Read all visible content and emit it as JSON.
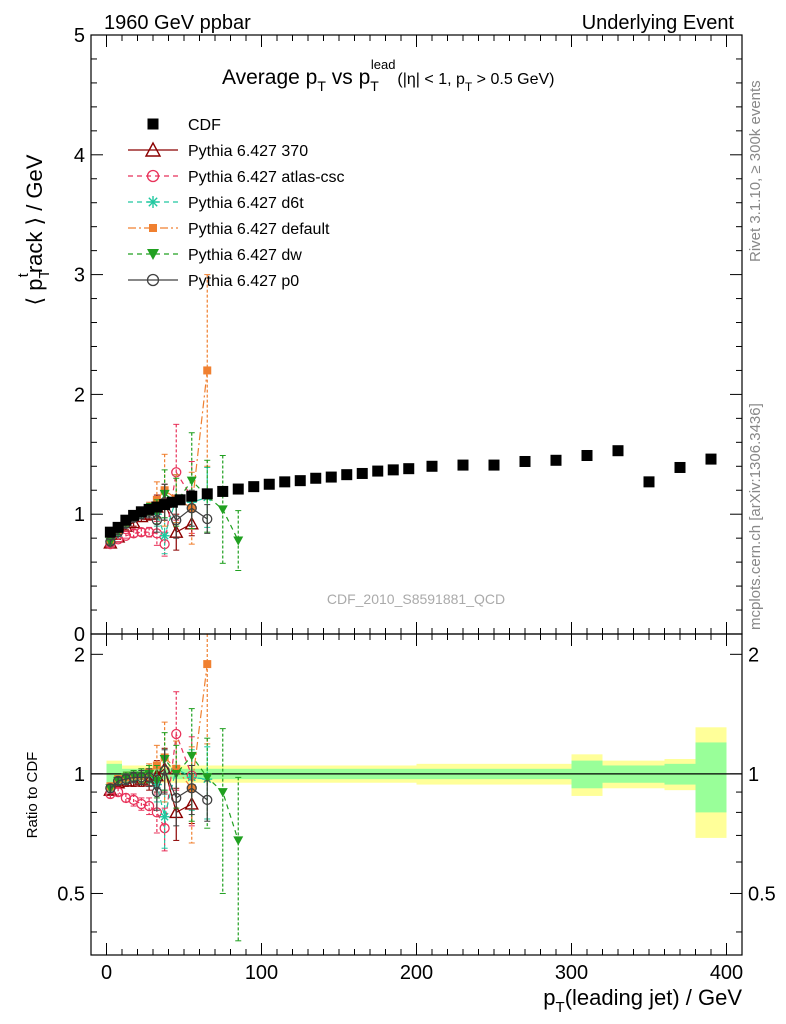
{
  "header": {
    "left": "1960 GeV ppbar",
    "right": "Underlying Event"
  },
  "title": {
    "main": "Average p",
    "sub": "T",
    "vs": " vs p",
    "lead_sub": "T",
    "lead_sup": "lead",
    "cuts": "(|η| < 1, p",
    "cuts_sub": "T",
    "cuts_end": " > 0.5 GeV)"
  },
  "ylabel": {
    "pre": "⟨ p",
    "sub": "T",
    "sup": "t",
    "post": "rack ⟩ / GeV"
  },
  "ratio_ylabel": "Ratio to CDF",
  "xlabel": {
    "pre": "p",
    "sub": "T",
    "post": "(leading jet) / GeV"
  },
  "analysis_id": "CDF_2010_S8591881_QCD",
  "side_label_top": "Rivet 3.1.10, ≥ 300k events",
  "side_label_bottom": "mcplots.cern.ch [arXiv:1306.3436]",
  "legend": [
    {
      "label": "CDF",
      "color": "#000000",
      "marker": "square",
      "dash": "none"
    },
    {
      "label": "Pythia 6.427 370",
      "color": "#8b0000",
      "marker": "triangle-open",
      "dash": "solid"
    },
    {
      "label": "Pythia 6.427 atlas-csc",
      "color": "#e8325a",
      "marker": "circle-open",
      "dash": "dashed"
    },
    {
      "label": "Pythia 6.427 d6t",
      "color": "#20c8a0",
      "marker": "star",
      "dash": "dashed"
    },
    {
      "label": "Pythia 6.427 default",
      "color": "#f08030",
      "marker": "square-small",
      "dash": "dashdot"
    },
    {
      "label": "Pythia 6.427 dw",
      "color": "#20a020",
      "marker": "triangle-down",
      "dash": "dashed"
    },
    {
      "label": "Pythia 6.427 p0",
      "color": "#404040",
      "marker": "circle-open",
      "dash": "solid"
    }
  ],
  "chart_data": [
    {
      "type": "scatter",
      "panel": "main",
      "xlim": [
        -10,
        410
      ],
      "ylim": [
        0,
        5
      ],
      "yticks": [
        0,
        1,
        2,
        3,
        4,
        5
      ],
      "xticks": [
        0,
        100,
        200,
        300,
        400
      ],
      "series": [
        {
          "name": "CDF",
          "x": [
            2.5,
            7.5,
            12.5,
            17.5,
            22.5,
            27.5,
            32.5,
            37.5,
            42.5,
            47.5,
            55,
            65,
            75,
            85,
            95,
            105,
            115,
            125,
            135,
            145,
            155,
            165,
            175,
            185,
            195,
            210,
            230,
            250,
            270,
            290,
            310,
            330,
            350,
            370,
            390
          ],
          "y": [
            0.85,
            0.89,
            0.95,
            0.99,
            1.02,
            1.04,
            1.06,
            1.08,
            1.1,
            1.12,
            1.15,
            1.17,
            1.19,
            1.21,
            1.23,
            1.25,
            1.27,
            1.28,
            1.3,
            1.31,
            1.33,
            1.34,
            1.36,
            1.37,
            1.38,
            1.4,
            1.41,
            1.41,
            1.44,
            1.45,
            1.49,
            1.53,
            1.27,
            1.39,
            1.46
          ]
        },
        {
          "name": "Pythia 6.427 370",
          "x": [
            2.5,
            7.5,
            12.5,
            17.5,
            22.5,
            27.5,
            32.5,
            37.5,
            45,
            55
          ],
          "y": [
            0.76,
            0.81,
            0.9,
            0.93,
            0.98,
            1.0,
            1.06,
            1.1,
            0.85,
            0.92
          ],
          "err": [
            0.02,
            0.02,
            0.03,
            0.03,
            0.04,
            0.05,
            0.1,
            0.15,
            0.15,
            0.1
          ]
        },
        {
          "name": "Pythia 6.427 atlas-csc",
          "x": [
            2.5,
            7.5,
            12.5,
            17.5,
            22.5,
            27.5,
            32.5,
            37.5,
            45,
            55
          ],
          "y": [
            0.75,
            0.79,
            0.82,
            0.84,
            0.85,
            0.85,
            0.84,
            0.75,
            1.35,
            1.14
          ],
          "err": [
            0.02,
            0.02,
            0.02,
            0.03,
            0.03,
            0.04,
            0.1,
            0.1,
            0.4,
            0.3
          ]
        },
        {
          "name": "Pythia 6.427 d6t",
          "x": [
            2.5,
            7.5,
            12.5,
            17.5,
            22.5,
            27.5,
            32.5,
            37.5,
            45,
            55,
            65
          ],
          "y": [
            0.77,
            0.84,
            0.92,
            0.98,
            1.01,
            1.04,
            1.0,
            0.82,
            1.13,
            1.1,
            1.14
          ],
          "err": [
            0.02,
            0.02,
            0.03,
            0.03,
            0.04,
            0.05,
            0.1,
            0.15,
            0.2,
            0.2,
            0.25
          ]
        },
        {
          "name": "Pythia 6.427 default",
          "x": [
            2.5,
            7.5,
            12.5,
            17.5,
            22.5,
            27.5,
            32.5,
            37.5,
            45,
            55,
            65
          ],
          "y": [
            0.78,
            0.86,
            0.93,
            0.98,
            1.02,
            1.05,
            1.12,
            1.2,
            1.13,
            1.05,
            2.2
          ],
          "err": [
            0.02,
            0.02,
            0.03,
            0.03,
            0.04,
            0.05,
            0.15,
            0.3,
            0.2,
            0.3,
            0.8
          ]
        },
        {
          "name": "Pythia 6.427 dw",
          "x": [
            2.5,
            7.5,
            12.5,
            17.5,
            22.5,
            27.5,
            32.5,
            37.5,
            45,
            55,
            65,
            75,
            85
          ],
          "y": [
            0.77,
            0.85,
            0.93,
            0.98,
            1.02,
            1.04,
            1.02,
            1.17,
            1.1,
            1.28,
            1.15,
            1.04,
            0.78
          ],
          "err": [
            0.02,
            0.02,
            0.03,
            0.03,
            0.04,
            0.05,
            0.1,
            0.2,
            0.2,
            0.4,
            0.3,
            0.45,
            0.25
          ]
        },
        {
          "name": "Pythia 6.427 p0",
          "x": [
            2.5,
            7.5,
            12.5,
            17.5,
            22.5,
            27.5,
            32.5,
            37.5,
            45,
            55,
            65
          ],
          "y": [
            0.77,
            0.85,
            0.92,
            0.97,
            1.0,
            1.02,
            0.95,
            1.1,
            0.95,
            1.05,
            0.96
          ],
          "err": [
            0.02,
            0.02,
            0.03,
            0.03,
            0.04,
            0.05,
            0.1,
            0.15,
            0.15,
            0.15,
            0.12
          ]
        }
      ]
    },
    {
      "type": "scatter",
      "panel": "ratio",
      "xlim": [
        -10,
        410
      ],
      "ylim": [
        0.35,
        2.25
      ],
      "yticks": [
        0.5,
        1,
        2
      ],
      "xticks": [
        0,
        100,
        200,
        300,
        400
      ],
      "band_x_edges": [
        0,
        10,
        20,
        30,
        40,
        50,
        60,
        70,
        80,
        90,
        100,
        120,
        140,
        160,
        180,
        200,
        220,
        240,
        260,
        280,
        300,
        320,
        340,
        360,
        380,
        400
      ],
      "band_green": [
        0.06,
        0.03,
        0.03,
        0.03,
        0.03,
        0.03,
        0.03,
        0.03,
        0.03,
        0.03,
        0.03,
        0.03,
        0.03,
        0.03,
        0.03,
        0.03,
        0.03,
        0.03,
        0.03,
        0.03,
        0.08,
        0.05,
        0.05,
        0.06,
        0.2
      ],
      "band_yellow": [
        0.08,
        0.05,
        0.05,
        0.05,
        0.05,
        0.05,
        0.05,
        0.05,
        0.05,
        0.05,
        0.05,
        0.05,
        0.05,
        0.05,
        0.05,
        0.06,
        0.06,
        0.06,
        0.06,
        0.06,
        0.12,
        0.08,
        0.08,
        0.09,
        0.31
      ],
      "series": [
        {
          "name": "Pythia 6.427 370",
          "x": [
            2.5,
            7.5,
            12.5,
            17.5,
            22.5,
            27.5,
            32.5,
            37.5,
            45,
            55
          ],
          "y": [
            0.91,
            0.95,
            0.96,
            0.96,
            0.97,
            0.96,
            0.99,
            1.03,
            0.8,
            0.84
          ],
          "err": [
            0.02,
            0.02,
            0.03,
            0.03,
            0.04,
            0.05,
            0.09,
            0.13,
            0.12,
            0.09
          ]
        },
        {
          "name": "Pythia 6.427 atlas-csc",
          "x": [
            2.5,
            7.5,
            12.5,
            17.5,
            22.5,
            27.5,
            32.5,
            37.5,
            45,
            55
          ],
          "y": [
            0.89,
            0.9,
            0.87,
            0.86,
            0.84,
            0.83,
            0.8,
            0.73,
            1.26,
            0.99
          ],
          "err": [
            0.02,
            0.02,
            0.02,
            0.03,
            0.03,
            0.04,
            0.09,
            0.09,
            0.35,
            0.25
          ]
        },
        {
          "name": "Pythia 6.427 d6t",
          "x": [
            2.5,
            7.5,
            12.5,
            17.5,
            22.5,
            27.5,
            32.5,
            37.5,
            45,
            55,
            65
          ],
          "y": [
            0.92,
            0.96,
            0.97,
            0.98,
            0.98,
            1.0,
            0.94,
            0.78,
            1.03,
            0.98,
            0.97
          ],
          "err": [
            0.02,
            0.02,
            0.03,
            0.03,
            0.04,
            0.05,
            0.09,
            0.13,
            0.18,
            0.17,
            0.2
          ]
        },
        {
          "name": "Pythia 6.427 default",
          "x": [
            2.5,
            7.5,
            12.5,
            17.5,
            22.5,
            27.5,
            32.5,
            37.5,
            45,
            55,
            65
          ],
          "y": [
            0.93,
            0.97,
            0.98,
            0.99,
            0.99,
            1.01,
            1.05,
            1.1,
            1.03,
            0.92,
            1.89
          ],
          "err": [
            0.02,
            0.02,
            0.03,
            0.03,
            0.04,
            0.05,
            0.13,
            0.25,
            0.18,
            0.25,
            0.7
          ]
        },
        {
          "name": "Pythia 6.427 dw",
          "x": [
            2.5,
            7.5,
            12.5,
            17.5,
            22.5,
            27.5,
            32.5,
            37.5,
            45,
            55,
            65,
            75,
            85
          ],
          "y": [
            0.92,
            0.96,
            0.98,
            0.99,
            0.99,
            1.0,
            0.96,
            1.09,
            1.0,
            1.11,
            0.98,
            0.9,
            0.68
          ],
          "err": [
            0.02,
            0.02,
            0.03,
            0.03,
            0.04,
            0.05,
            0.09,
            0.18,
            0.18,
            0.35,
            0.25,
            0.4,
            0.3
          ]
        },
        {
          "name": "Pythia 6.427 p0",
          "x": [
            2.5,
            7.5,
            12.5,
            17.5,
            22.5,
            27.5,
            32.5,
            37.5,
            45,
            55,
            65
          ],
          "y": [
            0.92,
            0.96,
            0.97,
            0.98,
            0.98,
            0.98,
            0.9,
            1.02,
            0.87,
            0.92,
            0.86
          ],
          "err": [
            0.02,
            0.02,
            0.03,
            0.03,
            0.04,
            0.05,
            0.09,
            0.13,
            0.13,
            0.13,
            0.1
          ]
        }
      ]
    }
  ]
}
